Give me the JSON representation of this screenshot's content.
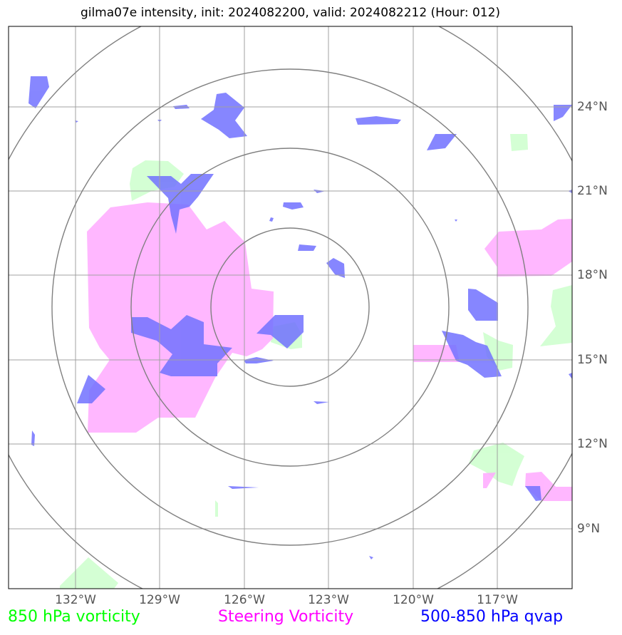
{
  "title": "gilma07e intensity, init: 2024082200, valid: 2024082212 (Hour: 012)",
  "latitude_labels": [
    "24°N",
    "21°N",
    "18°N",
    "15°N",
    "12°N",
    "9°N"
  ],
  "longitude_labels": [
    "132°W",
    "129°W",
    "126°W",
    "123°W",
    "120°W",
    "117°W"
  ],
  "legend": [
    {
      "label": "850 hPa vorticity",
      "color": "#00ff00"
    },
    {
      "label": "Steering Vorticity",
      "color": "#ff00ff"
    },
    {
      "label": "500-850 hPa qvap",
      "color": "#0000ff"
    }
  ],
  "layers": {
    "vorticity_850_color": "#ccffcc",
    "steering_vorticity_color": "#ffaaff",
    "qvap_color": "#7272ff",
    "grid_color": "#a0a0a0",
    "range_ring_color": "#808080"
  }
}
